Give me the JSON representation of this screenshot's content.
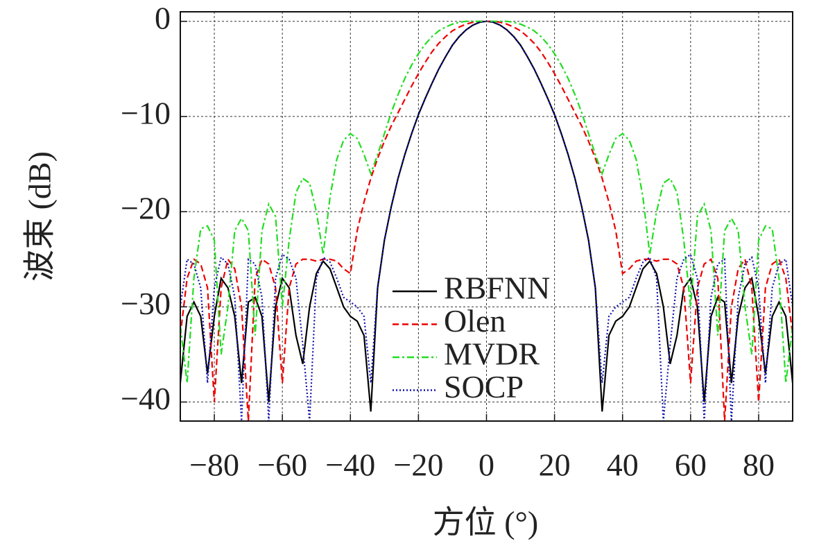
{
  "chart_data": {
    "type": "line",
    "xlabel": "方位 (°)",
    "ylabel": "波束 (dB)",
    "x": [
      -90,
      -88,
      -86,
      -84,
      -82,
      -80,
      -78,
      -76,
      -74,
      -72,
      -70,
      -68,
      -66,
      -64,
      -62,
      -60,
      -58,
      -56,
      -54,
      -52,
      -50,
      -48,
      -46,
      -44,
      -42,
      -40,
      -38,
      -36,
      -34,
      -32,
      -30,
      -28,
      -26,
      -24,
      -22,
      -20,
      -18,
      -16,
      -14,
      -12,
      -10,
      -8,
      -6,
      -4,
      -2,
      0,
      2,
      4,
      6,
      8,
      10,
      12,
      14,
      16,
      18,
      20,
      22,
      24,
      26,
      28,
      30,
      32,
      34,
      36,
      38,
      40,
      42,
      44,
      46,
      48,
      50,
      52,
      54,
      56,
      58,
      60,
      62,
      64,
      66,
      68,
      70,
      72,
      74,
      76,
      78,
      80,
      82,
      84,
      86,
      88,
      90
    ],
    "series": [
      {
        "name": "RBFNN",
        "color": "#000000",
        "dash": "none",
        "values": [
          -38,
          -31,
          -29.5,
          -31,
          -37,
          -31,
          -27,
          -28,
          -31,
          -38,
          -29.5,
          -29,
          -31,
          -40,
          -30,
          -27,
          -28,
          -33,
          -36,
          -30,
          -26.5,
          -25.2,
          -26,
          -28,
          -30,
          -31,
          -31.5,
          -33,
          -41,
          -28,
          -23,
          -19.5,
          -16.5,
          -14,
          -11.8,
          -9.8,
          -8.1,
          -6.5,
          -5,
          -3.7,
          -2.5,
          -1.6,
          -0.9,
          -0.4,
          -0.1,
          0,
          -0.1,
          -0.4,
          -0.9,
          -1.6,
          -2.5,
          -3.7,
          -5,
          -6.5,
          -8.1,
          -9.8,
          -11.8,
          -14,
          -16.5,
          -19.5,
          -23,
          -28,
          -41,
          -33,
          -31.5,
          -31,
          -30,
          -28,
          -26,
          -25.2,
          -26.5,
          -30,
          -36,
          -33,
          -28,
          -27,
          -30,
          -40,
          -31,
          -29,
          -29.5,
          -38,
          -31,
          -28,
          -27,
          -31,
          -37,
          -31,
          -29.5,
          -31,
          -38
        ]
      },
      {
        "name": "Olen",
        "color": "#ee0000",
        "dash": "9,5",
        "values": [
          -33,
          -27,
          -25,
          -25.5,
          -28,
          -40,
          -28,
          -25,
          -26,
          -30,
          -42,
          -27,
          -25,
          -25.5,
          -28,
          -38,
          -28,
          -25.5,
          -25,
          -25,
          -25.2,
          -25,
          -25,
          -25.2,
          -26,
          -26.5,
          -22,
          -19,
          -16.5,
          -14.4,
          -12.6,
          -11,
          -9.6,
          -8.2,
          -6.8,
          -5.5,
          -4.3,
          -3.2,
          -2.3,
          -1.6,
          -1,
          -0.6,
          -0.3,
          -0.1,
          0,
          0,
          0,
          -0.1,
          -0.3,
          -0.6,
          -1,
          -1.6,
          -2.3,
          -3.2,
          -4.3,
          -5.5,
          -6.8,
          -8.2,
          -9.6,
          -11,
          -12.6,
          -14.4,
          -16.5,
          -19,
          -22,
          -26.5,
          -26,
          -25.2,
          -25,
          -25,
          -25.2,
          -25,
          -25,
          -25.5,
          -28,
          -38,
          -28,
          -25.5,
          -25,
          -27,
          -42,
          -30,
          -26,
          -25,
          -28,
          -40,
          -28,
          -25.5,
          -25,
          -27,
          -33
        ]
      },
      {
        "name": "MVDR",
        "color": "#22dd22",
        "dash": "10,4,3,4",
        "values": [
          -32,
          -38,
          -27,
          -21.8,
          -21.5,
          -23,
          -35,
          -30,
          -22,
          -20.7,
          -22,
          -33,
          -22,
          -19.2,
          -20.5,
          -30,
          -23,
          -18,
          -16.5,
          -17,
          -20,
          -24.5,
          -18.5,
          -14.5,
          -12.5,
          -11.8,
          -12.3,
          -14,
          -16,
          -14,
          -11.8,
          -9.6,
          -7.7,
          -6,
          -4.6,
          -3.4,
          -2.4,
          -1.6,
          -1,
          -0.6,
          -0.3,
          -0.1,
          0,
          0,
          0,
          0,
          0,
          0,
          0,
          -0.1,
          -0.3,
          -0.6,
          -1,
          -1.6,
          -2.4,
          -3.4,
          -4.6,
          -6,
          -7.7,
          -9.6,
          -11.8,
          -14,
          -16,
          -14,
          -12.3,
          -11.8,
          -12.5,
          -14.5,
          -18.5,
          -24.5,
          -20,
          -17,
          -16.5,
          -18,
          -23,
          -30,
          -20.5,
          -19.2,
          -22,
          -33,
          -22,
          -20.7,
          -22,
          -30,
          -35,
          -23,
          -21.5,
          -21.8,
          -27,
          -38,
          -32
        ]
      },
      {
        "name": "SOCP",
        "color": "#1010aa",
        "dash": "2,3",
        "values": [
          -30,
          -25,
          -25.5,
          -28,
          -38,
          -28,
          -24.8,
          -25.5,
          -29,
          -42,
          -25,
          -25.5,
          -29,
          -42,
          -27,
          -24.5,
          -25,
          -27,
          -34,
          -42,
          -27,
          -24.8,
          -25.3,
          -27,
          -29,
          -29.5,
          -30,
          -31,
          -38,
          -28,
          -23,
          -19.5,
          -16.5,
          -14,
          -11.8,
          -9.8,
          -8.1,
          -6.5,
          -5,
          -3.7,
          -2.5,
          -1.6,
          -0.9,
          -0.4,
          -0.1,
          0,
          -0.1,
          -0.4,
          -0.9,
          -1.6,
          -2.5,
          -3.7,
          -5,
          -6.5,
          -8.1,
          -9.8,
          -11.8,
          -14,
          -16.5,
          -19.5,
          -23,
          -28,
          -38,
          -31,
          -30,
          -29.5,
          -29,
          -27,
          -25.3,
          -24.8,
          -27,
          -42,
          -34,
          -27,
          -25,
          -24.5,
          -27,
          -42,
          -29,
          -25.5,
          -25,
          -42,
          -29,
          -25.5,
          -24.8,
          -28,
          -38,
          -28,
          -25.5,
          -25,
          -30
        ]
      }
    ],
    "xlim": [
      -90,
      90
    ],
    "xticks": [
      {
        "value": -80,
        "label": "−80"
      },
      {
        "value": -60,
        "label": "−60"
      },
      {
        "value": -40,
        "label": "−40"
      },
      {
        "value": -20,
        "label": "−20"
      },
      0,
      20,
      40,
      60,
      80
    ],
    "ylim": [
      -42,
      1
    ],
    "yticks": [
      0,
      {
        "value": -10,
        "label": "−10"
      },
      {
        "value": -20,
        "label": "−20"
      },
      {
        "value": -30,
        "label": "−30"
      },
      {
        "value": -40,
        "label": "−40"
      }
    ],
    "grid": true,
    "legend": "lower center"
  }
}
